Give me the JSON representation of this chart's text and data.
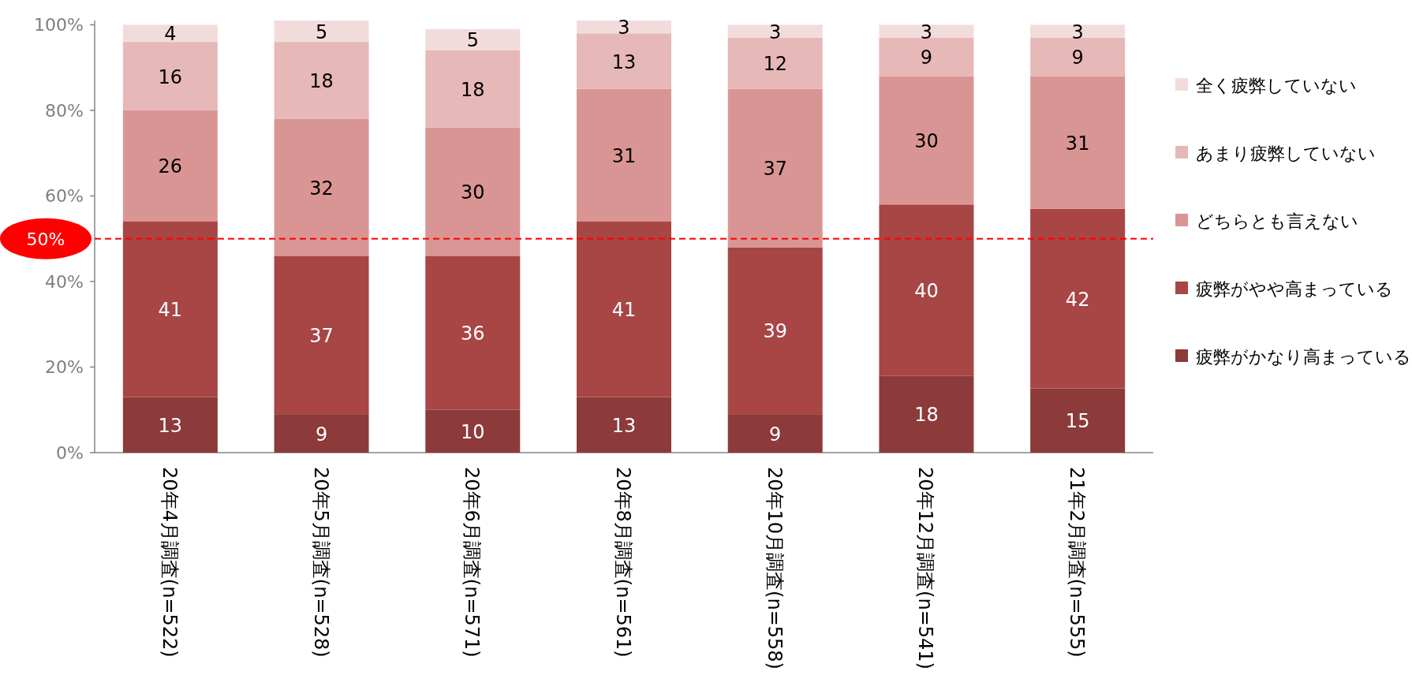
{
  "chart_data": {
    "type": "bar",
    "stacked": true,
    "categories": [
      "20年4月調査(n=522)",
      "20年5月調査(n=528)",
      "20年6月調査(n=571)",
      "20年8月調査(n=561)",
      "20年10月調査(n=558)",
      "20年12月調査(n=541)",
      "21年2月調査(n=555)"
    ],
    "series": [
      {
        "name": "疲弊がかなり高まっている",
        "color": "#8c3a3a",
        "values": [
          13,
          9,
          10,
          13,
          9,
          18,
          15
        ]
      },
      {
        "name": "疲弊がやや高まっている",
        "color": "#a84545",
        "values": [
          41,
          37,
          36,
          41,
          39,
          40,
          42
        ]
      },
      {
        "name": "どちらとも言えない",
        "color": "#d99594",
        "values": [
          26,
          32,
          30,
          31,
          37,
          30,
          31
        ]
      },
      {
        "name": "あまり疲弊していない",
        "color": "#e6b8b7",
        "values": [
          16,
          18,
          18,
          13,
          12,
          9,
          9
        ]
      },
      {
        "name": "全く疲弊していない",
        "color": "#f2dcdb",
        "values": [
          4,
          5,
          5,
          3,
          3,
          3,
          3
        ]
      }
    ],
    "ylim": [
      0,
      101
    ],
    "yticks": [
      {
        "value": 0,
        "label": "0%"
      },
      {
        "value": 20,
        "label": "20%"
      },
      {
        "value": 40,
        "label": "40%"
      },
      {
        "value": 60,
        "label": "60%"
      },
      {
        "value": 80,
        "label": "80%"
      },
      {
        "value": 100,
        "label": "100%"
      }
    ],
    "ref_lines": [
      {
        "axis": "y",
        "value": 50,
        "label": "50%",
        "color": "#ff0000",
        "line_style": "dashed"
      }
    ],
    "data_labels": true,
    "legend": "right",
    "grid": false
  }
}
